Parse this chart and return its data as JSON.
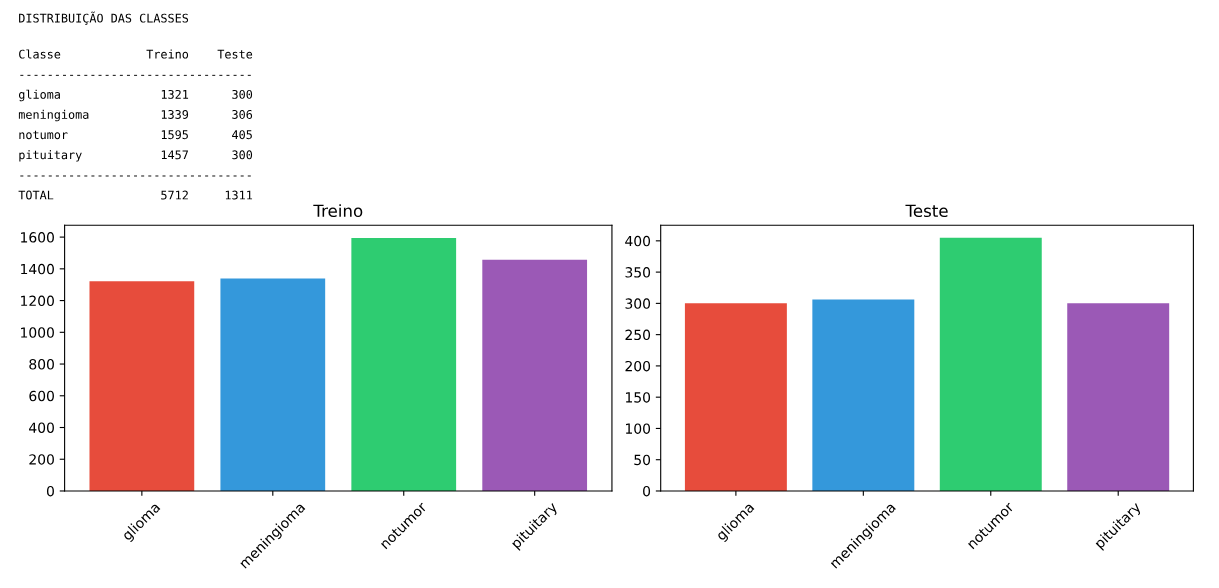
{
  "chart_data": [
    {
      "type": "other",
      "title": "DISTRIBUIÇÃO DAS CLASSES",
      "annotations": [
        "Classe            Treino    Teste",
        "---------------------------------",
        "glioma              1321      300",
        "meningioma          1339      306",
        "notumor             1595      405",
        "pituitary           1457      300",
        "---------------------------------",
        "TOTAL               5712     1311"
      ]
    },
    {
      "type": "bar",
      "title": "Treino",
      "categories": [
        "glioma",
        "meningioma",
        "notumor",
        "pituitary"
      ],
      "values": [
        1321,
        1339,
        1595,
        1457
      ],
      "colors": [
        "#e74c3c",
        "#3498db",
        "#2ecc71",
        "#9b59b6"
      ],
      "ylim": [
        0,
        1675
      ],
      "yticks": [
        0,
        200,
        400,
        600,
        800,
        1000,
        1200,
        1400,
        1600
      ],
      "grid": false
    },
    {
      "type": "bar",
      "title": "Teste",
      "categories": [
        "glioma",
        "meningioma",
        "notumor",
        "pituitary"
      ],
      "values": [
        300,
        306,
        405,
        300
      ],
      "colors": [
        "#e74c3c",
        "#3498db",
        "#2ecc71",
        "#9b59b6"
      ],
      "ylim": [
        0,
        425
      ],
      "yticks": [
        0,
        50,
        100,
        150,
        200,
        250,
        300,
        350,
        400
      ],
      "grid": false
    }
  ]
}
